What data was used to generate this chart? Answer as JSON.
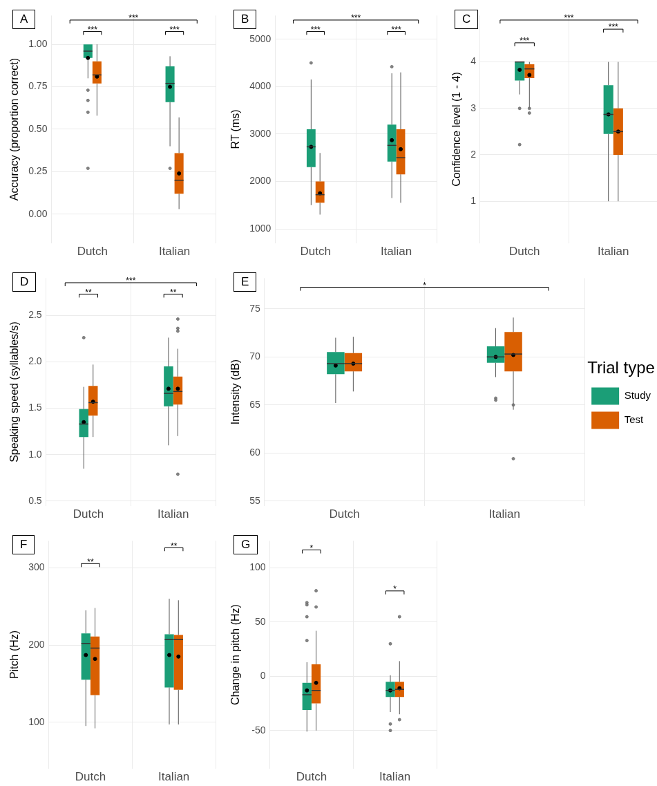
{
  "chart_data": [
    {
      "type": "box",
      "title": "A",
      "ylabel": "Accuracy (proportion correct)",
      "categories": [
        "Dutch",
        "Italian"
      ],
      "ylim": [
        -0.17,
        1.17
      ],
      "yticks": [
        {
          "value": 0,
          "label": "0.00"
        },
        {
          "value": 0.25,
          "label": "0.25"
        },
        {
          "value": 0.5,
          "label": "0.50"
        },
        {
          "value": 0.75,
          "label": "0.75"
        },
        {
          "value": 1,
          "label": "1.00"
        }
      ],
      "grid": true,
      "series": [
        {
          "color": "#1b9e77",
          "boxes": [
            {
              "low": 0.8,
              "q1": 0.92,
              "median": 0.96,
              "q3": 1.0,
              "high": 1.0,
              "mean": 0.92,
              "outliers": [
                0.73,
                0.67,
                0.6,
                0.27
              ]
            },
            {
              "low": 0.4,
              "q1": 0.66,
              "median": 0.77,
              "q3": 0.87,
              "high": 0.93,
              "mean": 0.75,
              "outliers": [
                0.27
              ]
            }
          ]
        },
        {
          "color": "#d95f02",
          "boxes": [
            {
              "low": 0.58,
              "q1": 0.77,
              "median": 0.82,
              "q3": 0.9,
              "high": 1.0,
              "mean": 0.81
            },
            {
              "low": 0.03,
              "q1": 0.12,
              "median": 0.2,
              "q3": 0.36,
              "high": 0.57,
              "mean": 0.24
            }
          ]
        }
      ],
      "annotations": [
        "***",
        "***",
        "***"
      ]
    },
    {
      "type": "box",
      "title": "B",
      "ylabel": "RT (ms)",
      "categories": [
        "Dutch",
        "Italian"
      ],
      "ylim": [
        700,
        5500
      ],
      "yticks": [
        1000,
        2000,
        3000,
        4000,
        5000
      ],
      "grid": true,
      "series": [
        {
          "color": "#1b9e77",
          "boxes": [
            {
              "low": 1500,
              "q1": 2300,
              "median": 2730,
              "q3": 3100,
              "high": 4150,
              "mean": 2730,
              "outliers": [
                4500
              ]
            },
            {
              "low": 1650,
              "q1": 2420,
              "median": 2760,
              "q3": 3200,
              "high": 4280,
              "mean": 2870,
              "outliers": [
                4420
              ]
            }
          ]
        },
        {
          "color": "#d95f02",
          "boxes": [
            {
              "low": 1300,
              "q1": 1550,
              "median": 1720,
              "q3": 2000,
              "high": 2600,
              "mean": 1750
            },
            {
              "low": 1550,
              "q1": 2150,
              "median": 2500,
              "q3": 3100,
              "high": 4300,
              "mean": 2680
            }
          ]
        }
      ],
      "annotations": [
        "***",
        "***",
        "***"
      ]
    },
    {
      "type": "box",
      "title": "C",
      "ylabel": "Confidence level (1 - 4)",
      "categories": [
        "Dutch",
        "Italian"
      ],
      "ylim": [
        0.1,
        5.0
      ],
      "yticks": [
        1,
        2,
        3,
        4
      ],
      "grid": true,
      "series": [
        {
          "color": "#1b9e77",
          "boxes": [
            {
              "low": 3.3,
              "q1": 3.6,
              "median": 4.0,
              "q3": 4.0,
              "high": 4.0,
              "mean": 3.83,
              "outliers": [
                3.0,
                2.22
              ]
            },
            {
              "low": 1.0,
              "q1": 2.45,
              "median": 2.87,
              "q3": 3.5,
              "high": 4.0,
              "mean": 2.87
            }
          ]
        },
        {
          "color": "#d95f02",
          "boxes": [
            {
              "low": 3.0,
              "q1": 3.65,
              "median": 3.85,
              "q3": 3.95,
              "high": 4.0,
              "mean": 3.72,
              "outliers": [
                3.0,
                2.9
              ]
            },
            {
              "low": 1.0,
              "q1": 2.0,
              "median": 2.5,
              "q3": 3.0,
              "high": 4.0,
              "mean": 2.5
            }
          ]
        }
      ],
      "annotations": [
        "***",
        "***",
        "***"
      ]
    },
    {
      "type": "box",
      "title": "D",
      "ylabel": "Speaking speed (syllables/s)",
      "categories": [
        "Dutch",
        "Italian"
      ],
      "ylim": [
        0.45,
        2.9
      ],
      "yticks": [
        0.5,
        {
          "value": 1,
          "label": "1.0"
        },
        1.5,
        {
          "value": 2,
          "label": "2.0"
        },
        2.5
      ],
      "grid": true,
      "series": [
        {
          "color": "#1b9e77",
          "boxes": [
            {
              "low": 0.85,
              "q1": 1.19,
              "median": 1.33,
              "q3": 1.49,
              "high": 1.73,
              "mean": 1.35,
              "outliers": [
                2.26
              ]
            },
            {
              "low": 1.1,
              "q1": 1.52,
              "median": 1.66,
              "q3": 1.95,
              "high": 2.26,
              "mean": 1.71
            }
          ]
        },
        {
          "color": "#d95f02",
          "boxes": [
            {
              "low": 1.19,
              "q1": 1.42,
              "median": 1.56,
              "q3": 1.74,
              "high": 1.97,
              "mean": 1.57
            },
            {
              "low": 1.2,
              "q1": 1.54,
              "median": 1.68,
              "q3": 1.84,
              "high": 2.14,
              "mean": 1.71,
              "outliers": [
                2.46,
                2.36,
                2.33,
                0.79
              ]
            }
          ]
        }
      ],
      "annotations": [
        "**",
        "**",
        "***"
      ]
    },
    {
      "type": "box",
      "title": "E",
      "ylabel": "Intensity (dB)",
      "categories": [
        "Dutch",
        "Italian"
      ],
      "ylim": [
        54.5,
        78.2
      ],
      "yticks": [
        55,
        60,
        65,
        70,
        75
      ],
      "grid": true,
      "legend": "right",
      "legend_title": "Trial type",
      "series": [
        {
          "name": "Study",
          "color": "#1b9e77",
          "boxes": [
            {
              "low": 65.2,
              "q1": 68.2,
              "median": 69.3,
              "q3": 70.5,
              "high": 72.0,
              "mean": 69.1
            },
            {
              "low": 67.9,
              "q1": 69.4,
              "median": 70.0,
              "q3": 71.1,
              "high": 73.0,
              "mean": 70.0,
              "outliers": [
                65.7,
                65.5
              ]
            }
          ]
        },
        {
          "name": "Test",
          "color": "#d95f02",
          "boxes": [
            {
              "low": 66.4,
              "q1": 68.5,
              "median": 69.3,
              "q3": 70.4,
              "high": 72.1,
              "mean": 69.3
            },
            {
              "low": 64.5,
              "q1": 68.5,
              "median": 70.3,
              "q3": 72.6,
              "high": 74.1,
              "mean": 70.2,
              "outliers": [
                59.4,
                65.0
              ]
            }
          ]
        }
      ],
      "annotations": [
        "*"
      ]
    },
    {
      "type": "box",
      "title": "F",
      "ylabel": "Pitch (Hz)",
      "categories": [
        "Dutch",
        "Italian"
      ],
      "ylim": [
        40,
        335
      ],
      "yticks": [
        100,
        200,
        300
      ],
      "grid": true,
      "series": [
        {
          "color": "#1b9e77",
          "boxes": [
            {
              "low": 95,
              "q1": 155,
              "median": 202,
              "q3": 215,
              "high": 245,
              "mean": 187
            },
            {
              "low": 97,
              "q1": 145,
              "median": 207,
              "q3": 214,
              "high": 260,
              "mean": 187
            }
          ]
        },
        {
          "color": "#d95f02",
          "boxes": [
            {
              "low": 92,
              "q1": 135,
              "median": 196,
              "q3": 211,
              "high": 248,
              "mean": 182
            },
            {
              "low": 97,
              "q1": 142,
              "median": 207,
              "q3": 213,
              "high": 258,
              "mean": 185
            }
          ]
        }
      ],
      "annotations": [
        "**",
        "**"
      ]
    },
    {
      "type": "box",
      "title": "G",
      "ylabel": "Change in pitch (Hz)",
      "categories": [
        "Dutch",
        "Italian"
      ],
      "ylim": [
        -85,
        125
      ],
      "yticks": [
        -50,
        0,
        50,
        100
      ],
      "grid": true,
      "series": [
        {
          "color": "#1b9e77",
          "boxes": [
            {
              "low": -51,
              "q1": -31,
              "median": -17,
              "q3": -6,
              "high": 13,
              "mean": -13,
              "outliers": [
                68,
                66,
                55,
                33
              ]
            },
            {
              "low": -33,
              "q1": -19,
              "median": -13,
              "q3": -5,
              "high": 1,
              "mean": -13,
              "outliers": [
                30,
                -44,
                -50
              ]
            }
          ]
        },
        {
          "color": "#d95f02",
          "boxes": [
            {
              "low": -50,
              "q1": -25,
              "median": -13,
              "q3": 11,
              "high": 42,
              "mean": -6,
              "outliers": [
                79,
                64
              ]
            },
            {
              "low": -35,
              "q1": -19,
              "median": -12,
              "q3": -5,
              "high": 14,
              "mean": -11,
              "outliers": [
                55,
                -40
              ]
            }
          ]
        }
      ],
      "annotations": [
        "*",
        "*"
      ]
    }
  ]
}
